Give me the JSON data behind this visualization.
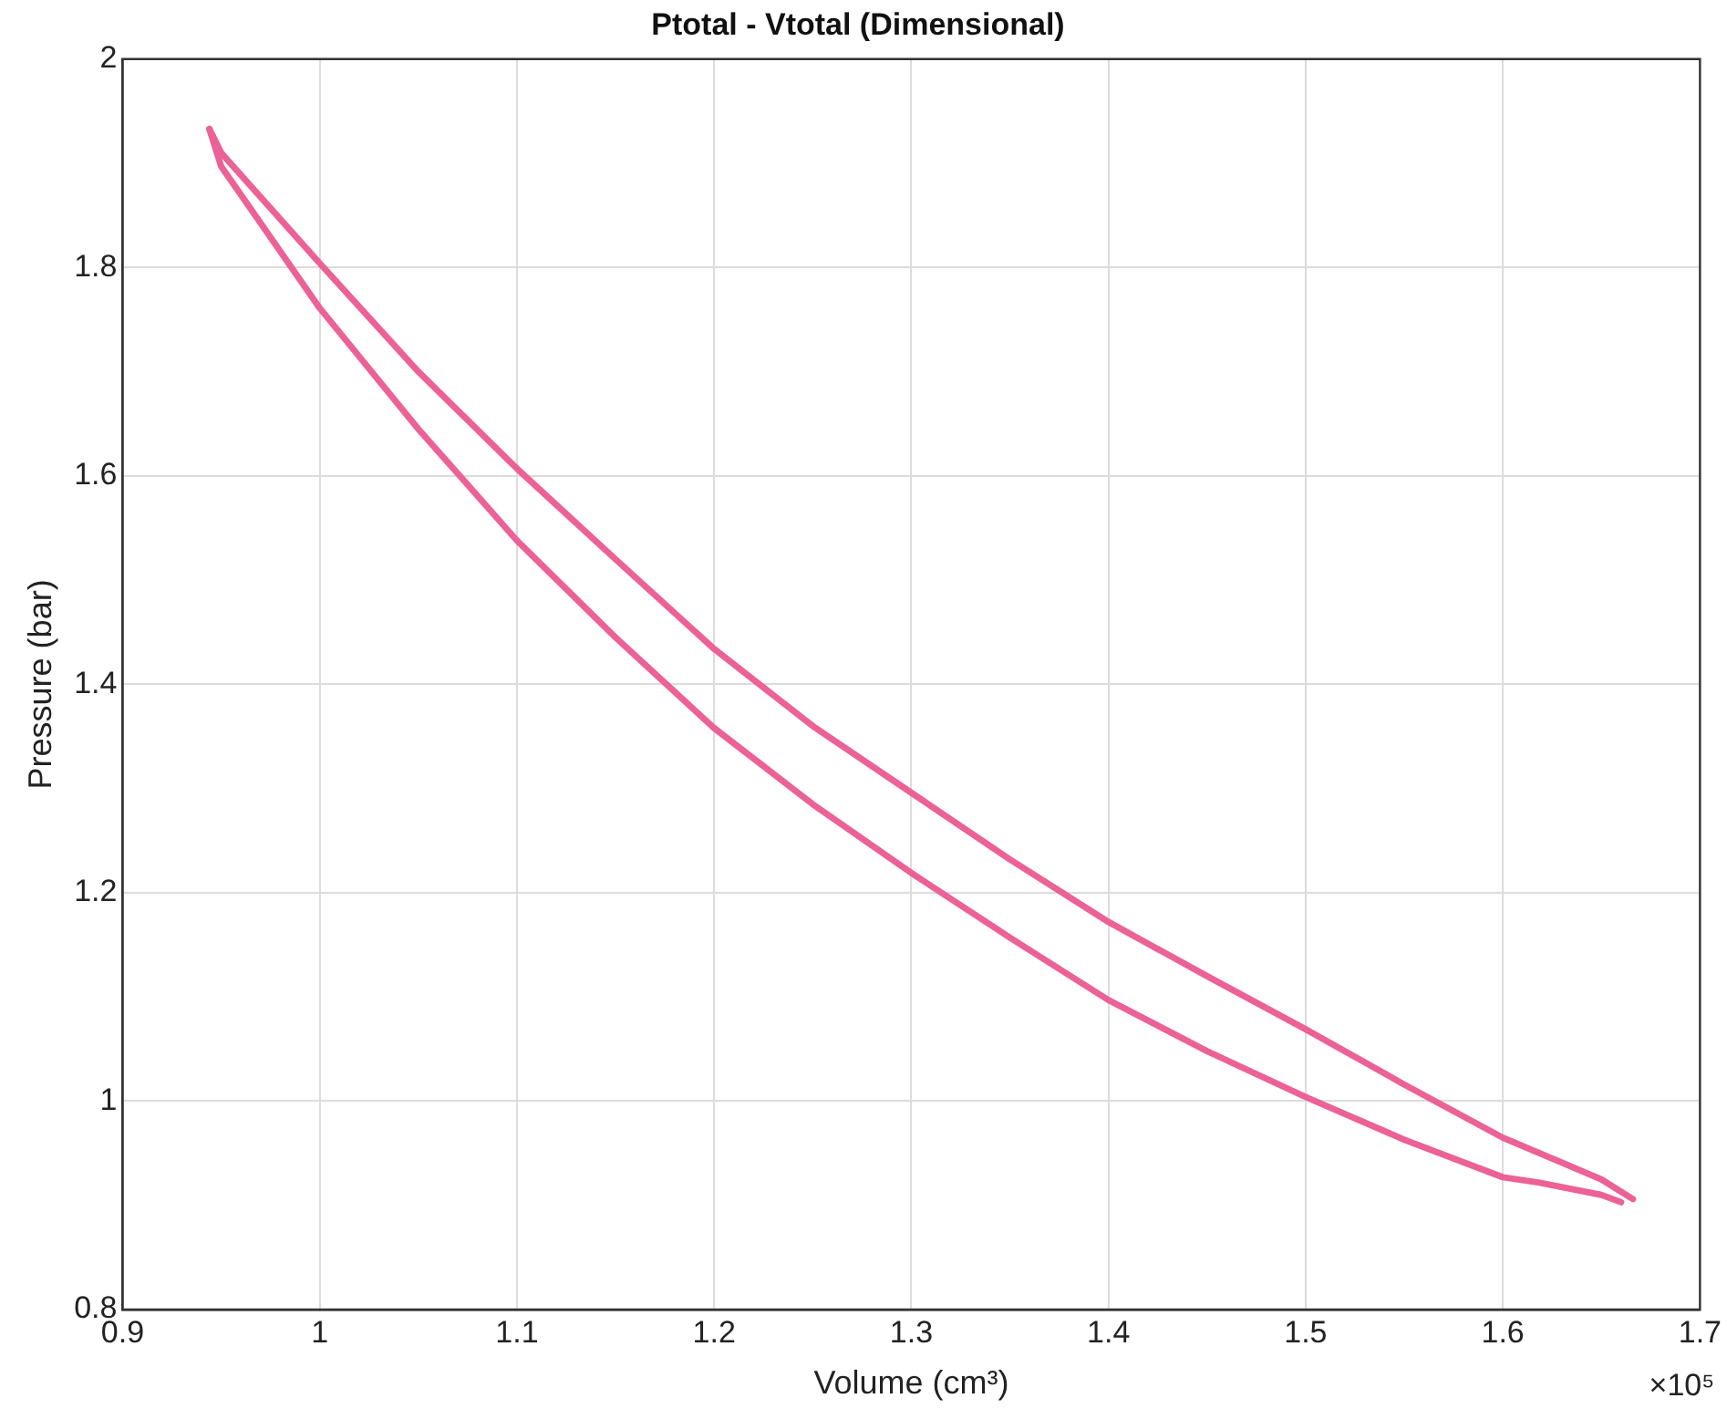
{
  "chart_data": {
    "type": "line",
    "title": "Ptotal - Vtotal (Dimensional)",
    "xlabel": "Volume (cm³)",
    "ylabel": "Pressure (bar)",
    "xlim": [
      0.9,
      1.7
    ],
    "xticks": [
      0.9,
      1,
      1.1,
      1.2,
      1.3,
      1.4,
      1.5,
      1.6,
      1.7
    ],
    "ylim": [
      0.8,
      2
    ],
    "yticks": [
      0.8,
      1,
      1.2,
      1.4,
      1.6,
      1.8,
      2
    ],
    "grid": true,
    "marker": "none",
    "line_style": "solid",
    "annotations": [
      "×10⁵"
    ],
    "series": [
      {
        "color": "#ec6196",
        "x": [
          0.944,
          0.95,
          1.0,
          1.05,
          1.1,
          1.15,
          1.2,
          1.25,
          1.3,
          1.35,
          1.4,
          1.45,
          1.5,
          1.55,
          1.6,
          1.65,
          1.666
        ],
        "values": [
          1.933,
          1.91,
          1.804,
          1.7,
          1.607,
          1.52,
          1.434,
          1.36,
          1.296,
          1.232,
          1.172,
          1.12,
          1.069,
          1.016,
          0.965,
          0.925,
          0.906
        ]
      },
      {
        "color": "#ec6196",
        "x": [
          0.944,
          0.95,
          1.0,
          1.05,
          1.1,
          1.15,
          1.2,
          1.25,
          1.3,
          1.35,
          1.4,
          1.45,
          1.5,
          1.55,
          1.6,
          1.618,
          1.65,
          1.66
        ],
        "values": [
          1.933,
          1.897,
          1.761,
          1.645,
          1.538,
          1.445,
          1.358,
          1.285,
          1.219,
          1.157,
          1.097,
          1.048,
          1.004,
          0.963,
          0.927,
          0.922,
          0.91,
          0.903
        ]
      }
    ]
  }
}
